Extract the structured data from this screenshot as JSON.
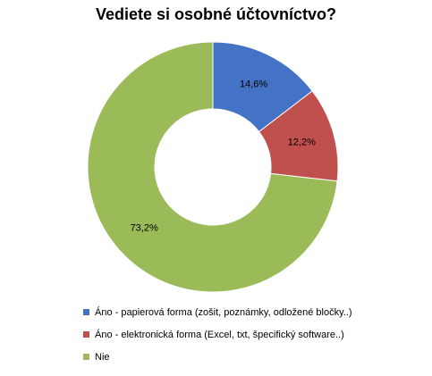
{
  "chart_data": {
    "type": "pie",
    "variant": "donut",
    "title": "Vediete si osobné účtovníctvo?",
    "categories": [
      "Áno - papierová forma (zošit, poznámky, odložené bločky..)",
      "Áno - elektronická forma (Excel, txt, špecifický software..)",
      "Nie"
    ],
    "values": [
      14.6,
      12.2,
      73.2
    ],
    "data_labels": [
      "14,6%",
      "12,2%",
      "73,2%"
    ],
    "colors": [
      "#4472C4",
      "#C0504D",
      "#9BBB59"
    ],
    "legend_position": "bottom-left"
  }
}
